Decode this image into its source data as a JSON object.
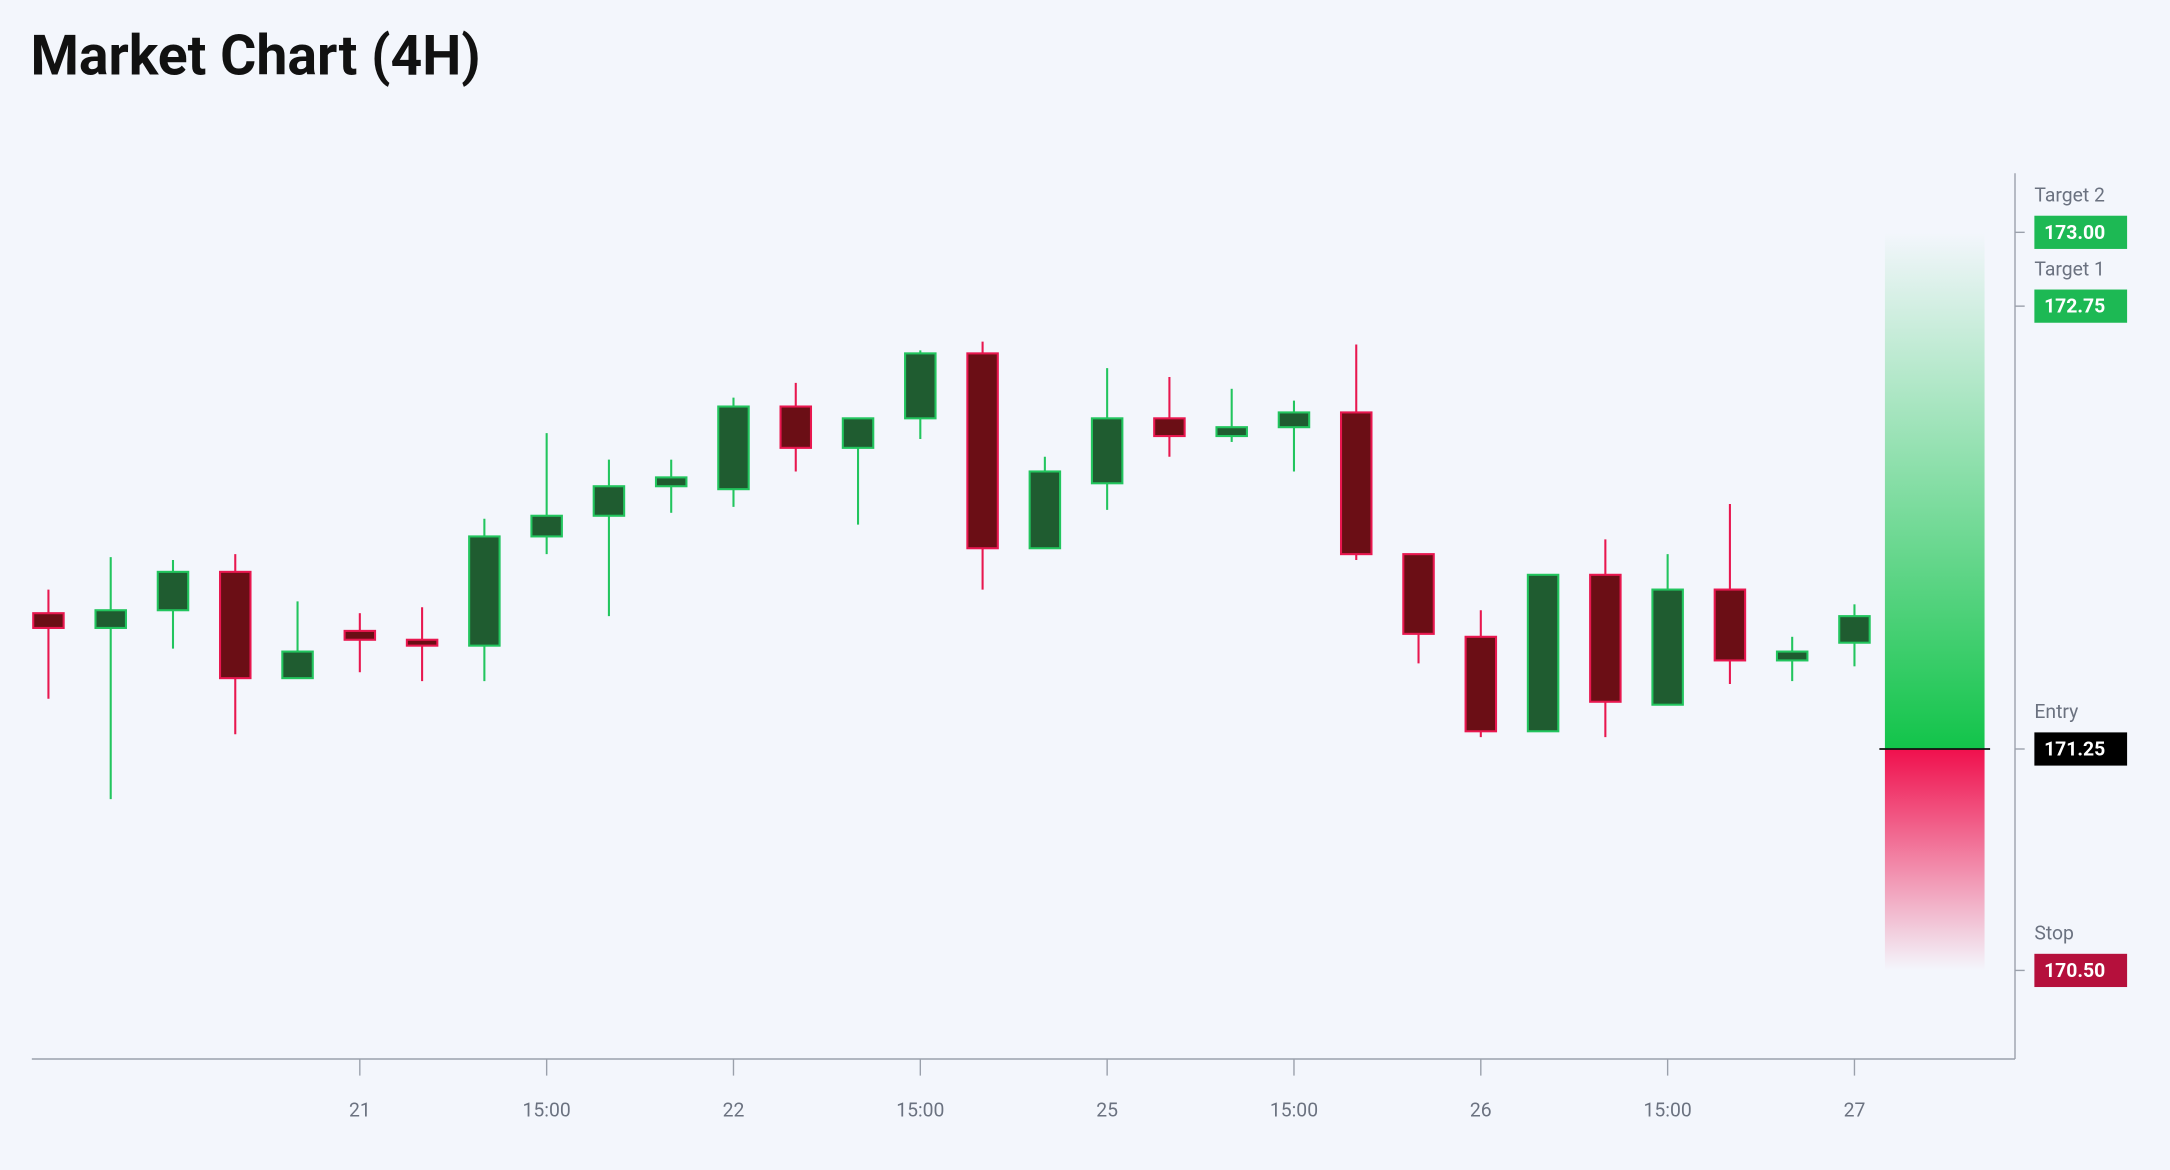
{
  "chart_data": {
    "type": "candlestick",
    "title": "Market Chart (4H)",
    "categories": [
      null,
      null,
      null,
      null,
      null,
      "21",
      null,
      null,
      "15:00",
      null,
      null,
      "22",
      null,
      null,
      "15:00",
      null,
      null,
      "25",
      null,
      null,
      "15:00",
      null,
      null,
      "26",
      null,
      null,
      "15:00",
      null,
      null,
      "27"
    ],
    "open": [
      171.71,
      171.66,
      171.72,
      171.85,
      171.49,
      171.65,
      171.62,
      171.6,
      171.97,
      172.04,
      172.14,
      172.13,
      172.41,
      172.27,
      172.37,
      172.59,
      171.93,
      172.15,
      172.37,
      172.31,
      172.34,
      172.39,
      171.91,
      171.63,
      171.31,
      171.84,
      171.4,
      171.79,
      171.55,
      171.61
    ],
    "high": [
      171.79,
      171.9,
      171.89,
      171.91,
      171.75,
      171.71,
      171.73,
      172.03,
      172.32,
      172.23,
      172.23,
      172.44,
      172.49,
      172.37,
      172.6,
      172.63,
      172.24,
      172.54,
      172.51,
      172.47,
      172.43,
      172.62,
      171.91,
      171.72,
      171.84,
      171.96,
      171.91,
      172.08,
      171.63,
      171.74
    ],
    "low": [
      171.42,
      171.08,
      171.59,
      171.3,
      171.49,
      171.51,
      171.48,
      171.48,
      171.91,
      171.7,
      172.05,
      172.07,
      172.19,
      172.01,
      172.3,
      171.79,
      171.93,
      172.06,
      172.24,
      172.29,
      172.19,
      171.89,
      171.54,
      171.29,
      171.31,
      171.29,
      171.4,
      171.47,
      171.48,
      171.53
    ],
    "close": [
      171.66,
      171.72,
      171.85,
      171.49,
      171.58,
      171.62,
      171.6,
      171.97,
      172.04,
      172.14,
      172.17,
      172.41,
      172.27,
      172.37,
      172.59,
      171.93,
      172.19,
      172.37,
      172.31,
      172.34,
      172.39,
      171.91,
      171.64,
      171.31,
      171.84,
      171.41,
      171.79,
      171.55,
      171.58,
      171.7
    ],
    "up_color": "#22c55e",
    "down_color": "#e8174f",
    "ylim": [
      170.2,
      173.2
    ],
    "levels": [
      {
        "name": "Target 2",
        "value": 173,
        "label": "173.00",
        "color": "#1db954"
      },
      {
        "name": "Target 1",
        "value": 172.75,
        "label": "172.75",
        "color": "#1db954"
      },
      {
        "name": "Entry",
        "value": 171.25,
        "label": "171.25",
        "color": "#000000"
      },
      {
        "name": "Stop",
        "value": 170.5,
        "label": "170.50",
        "color": "#b5103c"
      }
    ]
  }
}
